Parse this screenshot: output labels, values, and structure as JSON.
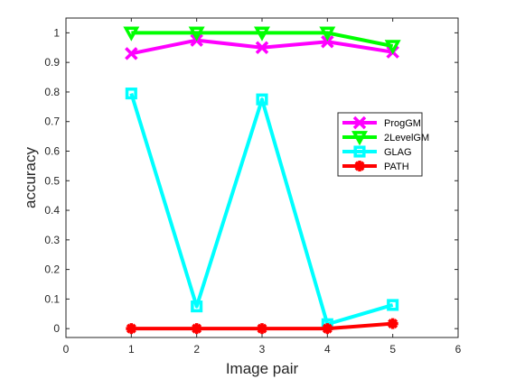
{
  "chart_data": {
    "type": "line",
    "xlabel": "Image pair",
    "ylabel": "accuracy",
    "xlim": [
      0,
      6
    ],
    "ylim": [
      -0.03,
      1.05
    ],
    "xticks": [
      "0",
      "1",
      "2",
      "3",
      "4",
      "5",
      "6"
    ],
    "yticks": [
      "0",
      "0.1",
      "0.2",
      "0.3",
      "0.4",
      "0.5",
      "0.6",
      "0.7",
      "0.8",
      "0.9",
      "1"
    ],
    "x": [
      1,
      2,
      3,
      4,
      5
    ],
    "grid": false,
    "legend_position": "upper-right-inside",
    "series": [
      {
        "name": "ProgGM",
        "values": [
          0.93,
          0.975,
          0.95,
          0.97,
          0.935
        ],
        "color": "#ff00ff",
        "marker": "x"
      },
      {
        "name": "2LevelGM",
        "values": [
          1.0,
          1.0,
          1.0,
          1.0,
          0.955
        ],
        "color": "#00ff00",
        "marker": "triangle-down"
      },
      {
        "name": "GLAG",
        "values": [
          0.795,
          0.075,
          0.775,
          0.015,
          0.08
        ],
        "color": "#00ffff",
        "marker": "square"
      },
      {
        "name": "PATH",
        "values": [
          0.0,
          0.0,
          0.0,
          0.0,
          0.017
        ],
        "color": "#ff0000",
        "marker": "asterisk"
      }
    ]
  }
}
